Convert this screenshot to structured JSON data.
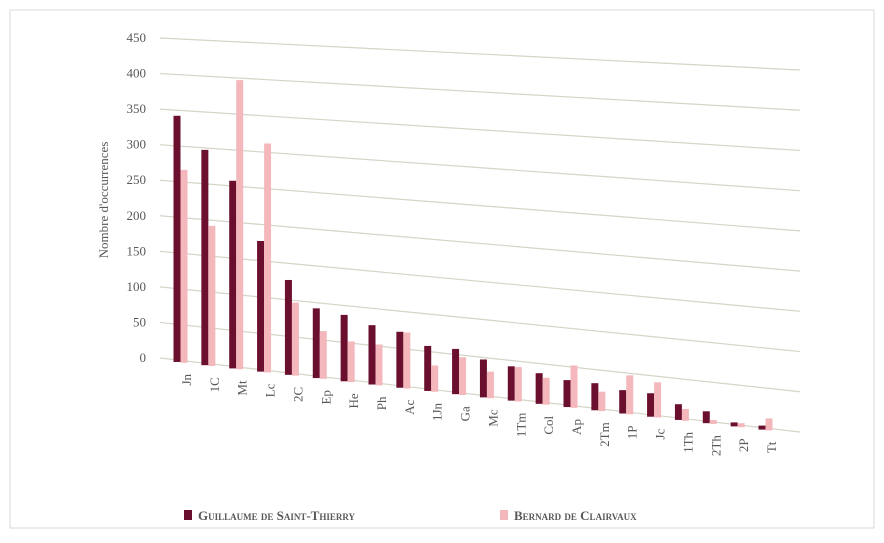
{
  "chart_data": {
    "type": "bar3d",
    "y_label": "Nombre d'occurrences",
    "categories": [
      "Jn",
      "1C",
      "Mt",
      "Lc",
      "2C",
      "Ep",
      "He",
      "Ph",
      "Ac",
      "1Jn",
      "Ga",
      "Mc",
      "1Tm",
      "Col",
      "Ap",
      "2Tm",
      "1P",
      "Jc",
      "1Th",
      "2Th",
      "2P",
      "Tt"
    ],
    "series": [
      {
        "name": "Guillaume de Saint-Thierry",
        "color": "#6b0f2e",
        "values": [
          345,
          300,
          260,
          180,
          130,
          95,
          90,
          80,
          75,
          60,
          60,
          50,
          45,
          40,
          35,
          35,
          30,
          30,
          20,
          15,
          5,
          5
        ]
      },
      {
        "name": "Bernard de Clairvaux",
        "color": "#f4b8bc",
        "values": [
          270,
          195,
          400,
          315,
          100,
          65,
          55,
          55,
          75,
          35,
          50,
          35,
          45,
          35,
          55,
          25,
          50,
          45,
          15,
          5,
          5,
          15
        ]
      }
    ],
    "ylim": [
      0,
      450
    ],
    "yticks": [
      0,
      50,
      100,
      150,
      200,
      250,
      300,
      350,
      400,
      450
    ],
    "grid": true
  }
}
